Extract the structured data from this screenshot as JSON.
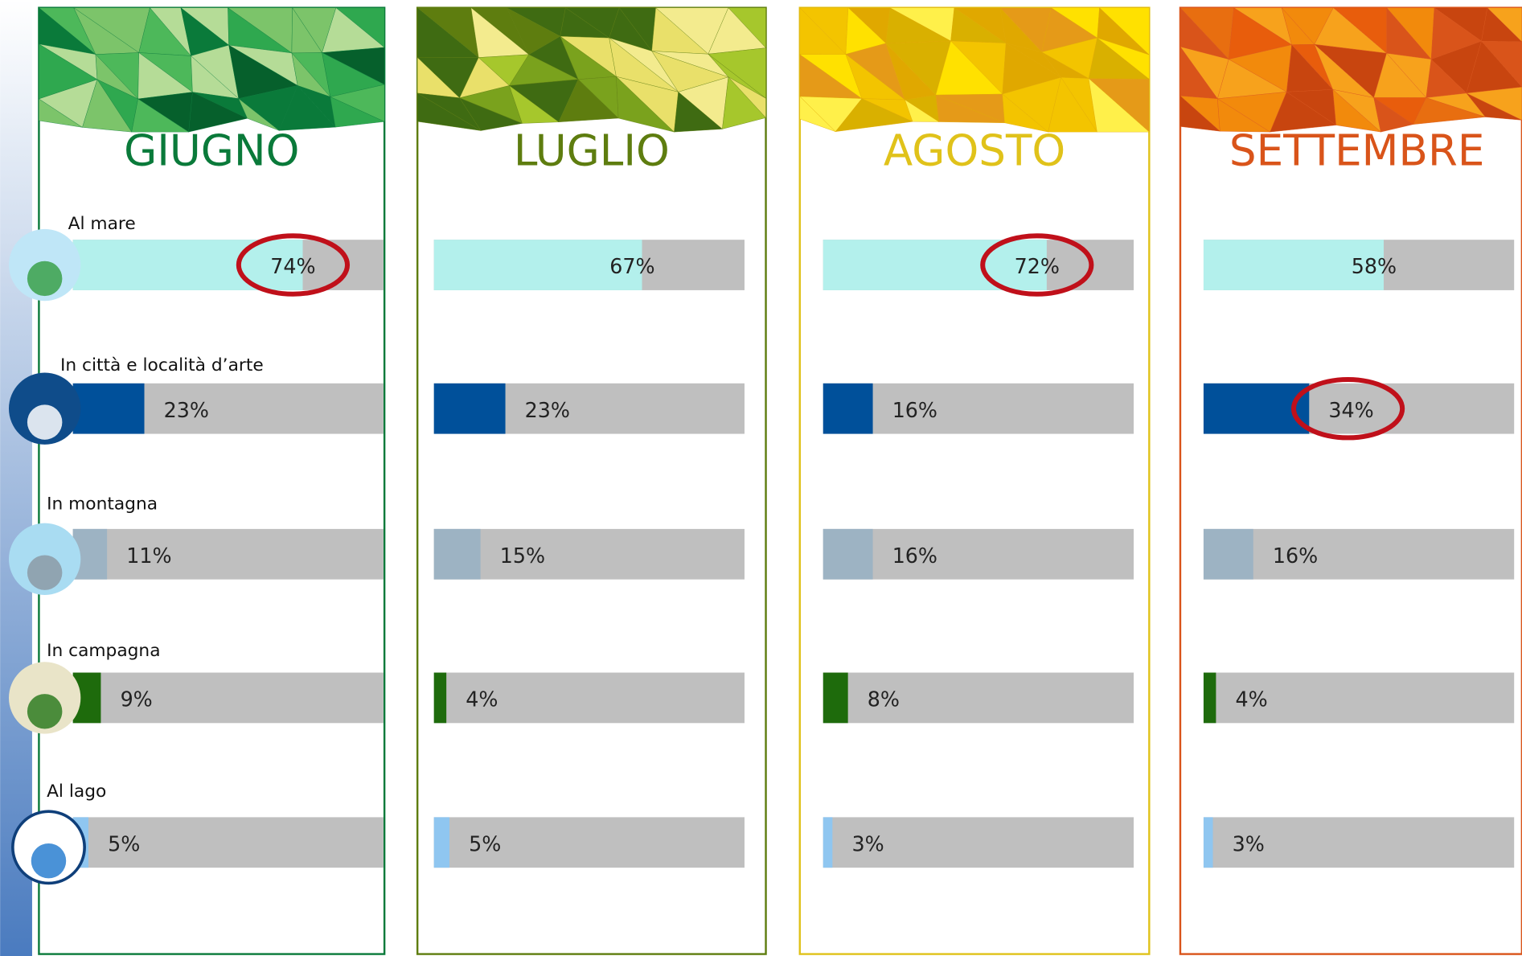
{
  "chart_data": [
    {
      "type": "bar",
      "title": "GIUGNO",
      "color": "#0a7a3a",
      "categories": [
        "Al mare",
        "In città e località d’arte",
        "In montagna",
        "In campagna",
        "Al lago"
      ],
      "values": [
        74,
        23,
        11,
        9,
        5
      ],
      "value_labels": [
        "74%",
        "23%",
        "11%",
        "9%",
        "5%"
      ],
      "colors": [
        "#b3f0ec",
        "#00509a",
        "#9db3c3",
        "#1e6b0c",
        "#8fc6f0"
      ],
      "xlim": [
        0,
        100
      ],
      "highlight": [
        0
      ]
    },
    {
      "type": "bar",
      "title": "LUGLIO",
      "color": "#5e7d0f",
      "values": [
        67,
        23,
        15,
        4,
        5
      ],
      "value_labels": [
        "67%",
        "23%",
        "15%",
        "4%",
        "5%"
      ],
      "colors": [
        "#b3f0ec",
        "#00509a",
        "#9db3c3",
        "#1e6b0c",
        "#8fc6f0"
      ],
      "xlim": [
        0,
        100
      ],
      "highlight": []
    },
    {
      "type": "bar",
      "title": "AGOSTO",
      "color": "#e0c21a",
      "values": [
        72,
        16,
        16,
        8,
        3
      ],
      "value_labels": [
        "72%",
        "16%",
        "16%",
        "8%",
        "3%"
      ],
      "colors": [
        "#b3f0ec",
        "#00509a",
        "#9db3c3",
        "#1e6b0c",
        "#8fc6f0"
      ],
      "xlim": [
        0,
        100
      ],
      "highlight": [
        0
      ]
    },
    {
      "type": "bar",
      "title": "SETTEMBRE",
      "color": "#d9541a",
      "values": [
        58,
        34,
        16,
        4,
        3
      ],
      "value_labels": [
        "58%",
        "34%",
        "16%",
        "4%",
        "3%"
      ],
      "colors": [
        "#b3f0ec",
        "#00509a",
        "#9db3c3",
        "#1e6b0c",
        "#8fc6f0"
      ],
      "xlim": [
        0,
        100
      ],
      "highlight": [
        1
      ]
    }
  ]
}
